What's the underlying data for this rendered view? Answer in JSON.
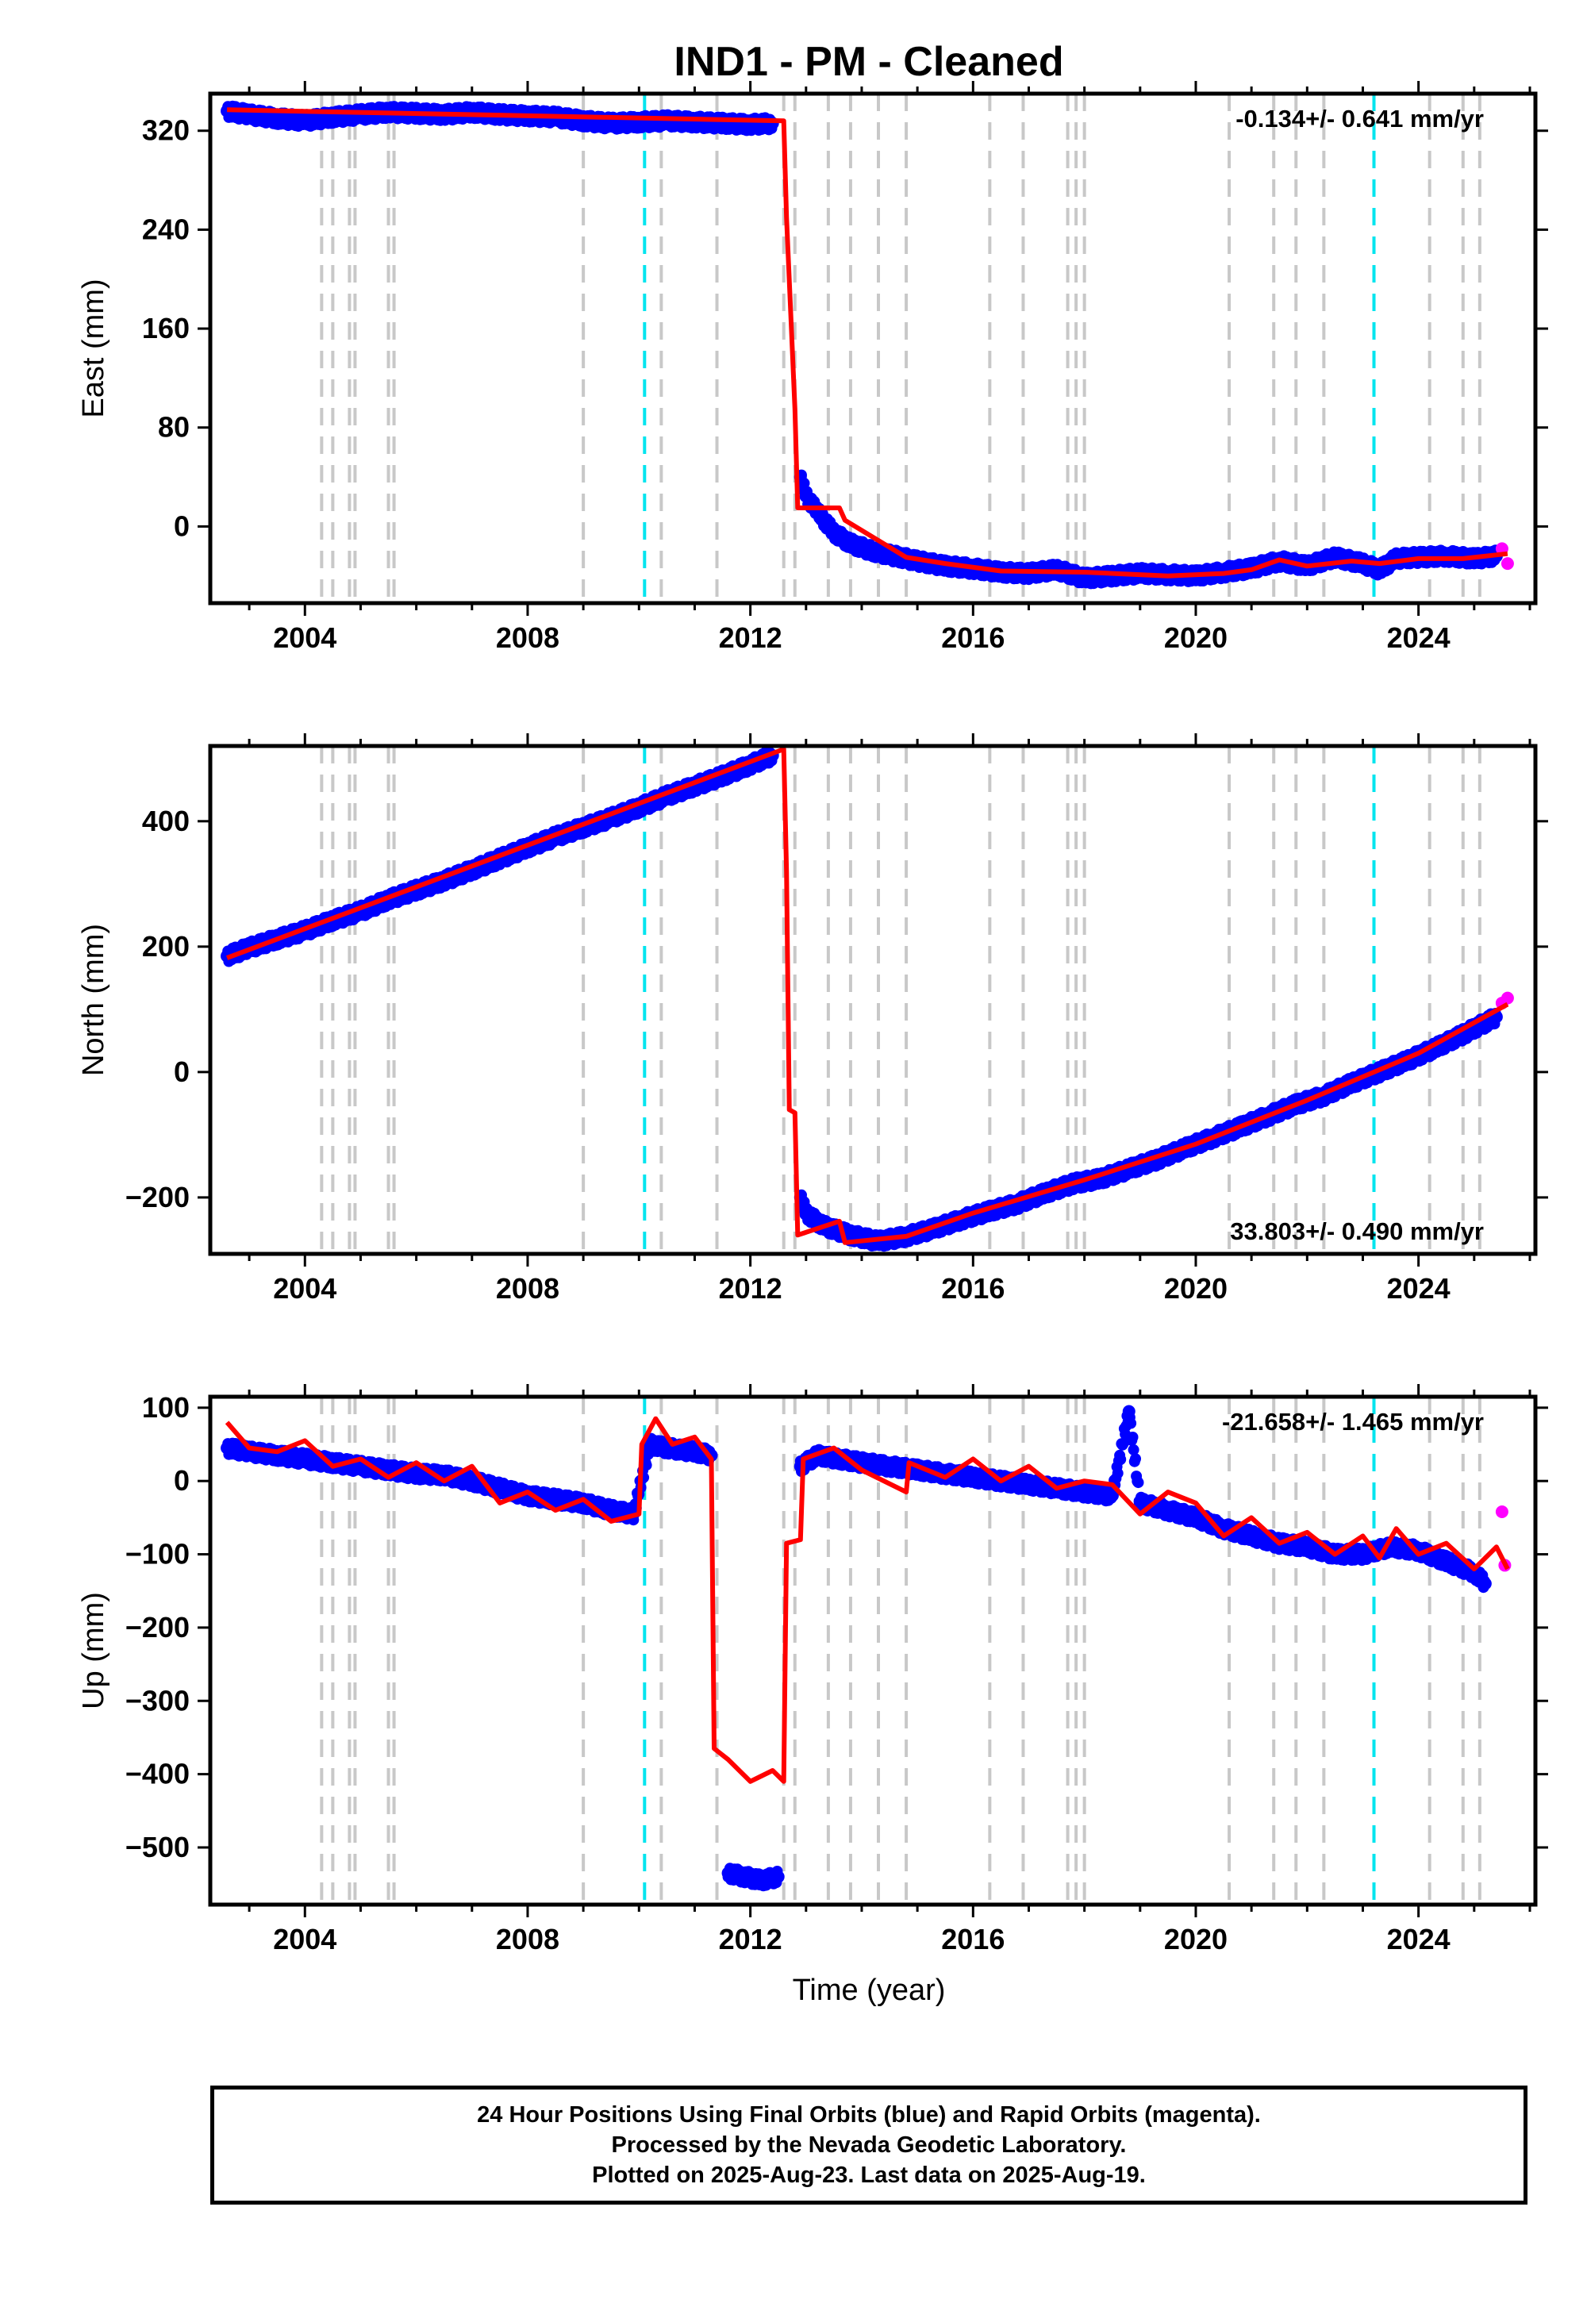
{
  "title": "IND1  - PM - Cleaned",
  "xlabel": "Time (year)",
  "footer": {
    "line1": "24 Hour Positions Using Final Orbits (blue) and Rapid Orbits (magenta).",
    "line2": "Processed by the Nevada Geodetic Laboratory.",
    "line3": "Plotted on 2025-Aug-23. Last data on 2025-Aug-19."
  },
  "colors": {
    "final_orbits": "#0000ff",
    "rapid_orbits": "#ff00ff",
    "model": "#ff0000",
    "equipment_change": "#c8c8c8",
    "earthquake": "#00e5ee"
  },
  "chart_data": {
    "type": "scatter",
    "xlim": [
      2002.3,
      2026.1
    ],
    "x_ticks": [
      2004,
      2008,
      2012,
      2016,
      2020,
      2024
    ],
    "gray_event_lines": [
      2004.3,
      2004.5,
      2004.8,
      2004.9,
      2005.5,
      2005.6,
      2009.0,
      2010.4,
      2011.4,
      2012.6,
      2012.8,
      2013.4,
      2013.8,
      2014.3,
      2014.8,
      2016.3,
      2016.9,
      2017.7,
      2017.85,
      2018.0,
      2020.6,
      2021.4,
      2021.8,
      2022.3,
      2024.2,
      2024.8,
      2025.1
    ],
    "cyan_event_lines": [
      2010.1,
      2023.2
    ],
    "panels": [
      {
        "ylabel": "East (mm)",
        "ylim": [
          -62,
          350
        ],
        "y_ticks": [
          320,
          240,
          160,
          80,
          0
        ],
        "rate_text": "-0.134+/- 0.641 mm/yr",
        "final_points": [
          [
            2002.6,
            336
          ],
          [
            2003.0,
            333
          ],
          [
            2003.5,
            330
          ],
          [
            2004.0,
            328
          ],
          [
            2004.5,
            331
          ],
          [
            2005.0,
            333
          ],
          [
            2005.5,
            335
          ],
          [
            2006.0,
            334
          ],
          [
            2006.5,
            333
          ],
          [
            2007.0,
            335
          ],
          [
            2007.5,
            333
          ],
          [
            2008.0,
            332
          ],
          [
            2008.5,
            331
          ],
          [
            2009.0,
            328
          ],
          [
            2009.5,
            326
          ],
          [
            2010.0,
            327
          ],
          [
            2010.5,
            328
          ],
          [
            2011.0,
            327
          ],
          [
            2011.5,
            326
          ],
          [
            2012.0,
            325
          ],
          [
            2012.4,
            326
          ],
          [
            2012.9,
            40
          ],
          [
            2013.0,
            25
          ],
          [
            2013.2,
            12
          ],
          [
            2013.5,
            -5
          ],
          [
            2013.8,
            -14
          ],
          [
            2014.2,
            -20
          ],
          [
            2014.6,
            -24
          ],
          [
            2015.0,
            -28
          ],
          [
            2015.5,
            -32
          ],
          [
            2016.0,
            -34
          ],
          [
            2016.5,
            -37
          ],
          [
            2017.0,
            -38
          ],
          [
            2017.5,
            -35
          ],
          [
            2018.0,
            -42
          ],
          [
            2018.5,
            -40
          ],
          [
            2019.0,
            -38
          ],
          [
            2019.5,
            -39
          ],
          [
            2020.0,
            -40
          ],
          [
            2020.5,
            -37
          ],
          [
            2021.0,
            -34
          ],
          [
            2021.5,
            -28
          ],
          [
            2022.0,
            -32
          ],
          [
            2022.5,
            -25
          ],
          [
            2023.0,
            -30
          ],
          [
            2023.3,
            -35
          ],
          [
            2023.6,
            -26
          ],
          [
            2024.0,
            -25
          ],
          [
            2024.5,
            -24
          ],
          [
            2025.0,
            -26
          ],
          [
            2025.4,
            -24
          ]
        ],
        "rapid_points": [
          [
            2025.5,
            -18
          ],
          [
            2025.6,
            -30
          ]
        ],
        "model_line": [
          [
            2002.6,
            337
          ],
          [
            2012.6,
            328
          ],
          [
            2012.65,
            250
          ],
          [
            2012.8,
            95
          ],
          [
            2012.85,
            15
          ],
          [
            2013.6,
            15
          ],
          [
            2013.7,
            5
          ],
          [
            2014.8,
            -25
          ],
          [
            2015.5,
            -30
          ],
          [
            2016.5,
            -36
          ],
          [
            2018.0,
            -37
          ],
          [
            2019.5,
            -40
          ],
          [
            2020.5,
            -38
          ],
          [
            2021.0,
            -35
          ],
          [
            2021.5,
            -27
          ],
          [
            2022.0,
            -32
          ],
          [
            2022.8,
            -28
          ],
          [
            2023.3,
            -30
          ],
          [
            2024.0,
            -26
          ],
          [
            2024.8,
            -26
          ],
          [
            2025.6,
            -22
          ]
        ]
      },
      {
        "ylabel": "North (mm)",
        "ylim": [
          -290,
          520
        ],
        "y_ticks": [
          400,
          200,
          0,
          -200
        ],
        "rate_text": "33.803+/- 0.490 mm/yr",
        "final_points": [
          [
            2002.6,
            185
          ],
          [
            2003.0,
            198
          ],
          [
            2003.5,
            212
          ],
          [
            2004.0,
            225
          ],
          [
            2004.5,
            242
          ],
          [
            2005.0,
            256
          ],
          [
            2005.5,
            275
          ],
          [
            2006.0,
            290
          ],
          [
            2006.5,
            305
          ],
          [
            2007.0,
            322
          ],
          [
            2007.5,
            340
          ],
          [
            2008.0,
            358
          ],
          [
            2008.5,
            375
          ],
          [
            2009.0,
            390
          ],
          [
            2009.5,
            405
          ],
          [
            2010.0,
            422
          ],
          [
            2010.5,
            440
          ],
          [
            2011.0,
            456
          ],
          [
            2011.5,
            472
          ],
          [
            2012.0,
            490
          ],
          [
            2012.4,
            505
          ],
          [
            2012.9,
            -200
          ],
          [
            2013.0,
            -225
          ],
          [
            2013.3,
            -245
          ],
          [
            2013.8,
            -260
          ],
          [
            2014.3,
            -270
          ],
          [
            2014.8,
            -262
          ],
          [
            2015.3,
            -250
          ],
          [
            2015.8,
            -235
          ],
          [
            2016.3,
            -222
          ],
          [
            2016.8,
            -210
          ],
          [
            2017.3,
            -193
          ],
          [
            2017.8,
            -178
          ],
          [
            2018.3,
            -170
          ],
          [
            2018.8,
            -155
          ],
          [
            2019.3,
            -140
          ],
          [
            2019.8,
            -122
          ],
          [
            2020.3,
            -105
          ],
          [
            2020.8,
            -88
          ],
          [
            2021.3,
            -70
          ],
          [
            2021.8,
            -52
          ],
          [
            2022.3,
            -38
          ],
          [
            2022.8,
            -18
          ],
          [
            2023.3,
            0
          ],
          [
            2023.8,
            18
          ],
          [
            2024.3,
            38
          ],
          [
            2024.8,
            60
          ],
          [
            2025.4,
            88
          ]
        ],
        "rapid_points": [
          [
            2025.5,
            110
          ],
          [
            2025.6,
            118
          ]
        ],
        "model_line": [
          [
            2002.6,
            182
          ],
          [
            2012.6,
            515
          ],
          [
            2012.65,
            320
          ],
          [
            2012.7,
            -60
          ],
          [
            2012.8,
            -65
          ],
          [
            2012.85,
            -260
          ],
          [
            2013.6,
            -238
          ],
          [
            2013.7,
            -272
          ],
          [
            2014.8,
            -262
          ],
          [
            2016.0,
            -225
          ],
          [
            2018.0,
            -172
          ],
          [
            2020.0,
            -115
          ],
          [
            2022.0,
            -45
          ],
          [
            2024.0,
            30
          ],
          [
            2025.6,
            108
          ]
        ]
      },
      {
        "ylabel": "Up (mm)",
        "ylim": [
          -578,
          115
        ],
        "y_ticks": [
          100,
          0,
          -100,
          -200,
          -300,
          -400,
          -500
        ],
        "rate_text": "-21.658+/- 1.465 mm/yr",
        "final_points": [
          [
            2002.6,
            45
          ],
          [
            2003.0,
            40
          ],
          [
            2003.5,
            35
          ],
          [
            2004.0,
            30
          ],
          [
            2004.5,
            25
          ],
          [
            2005.0,
            20
          ],
          [
            2005.5,
            15
          ],
          [
            2006.0,
            10
          ],
          [
            2006.5,
            8
          ],
          [
            2007.0,
            0
          ],
          [
            2007.5,
            -10
          ],
          [
            2008.0,
            -20
          ],
          [
            2008.5,
            -25
          ],
          [
            2009.0,
            -30
          ],
          [
            2009.5,
            -40
          ],
          [
            2009.9,
            -45
          ],
          [
            2010.2,
            50
          ],
          [
            2010.5,
            45
          ],
          [
            2011.0,
            40
          ],
          [
            2011.3,
            35
          ],
          [
            2011.6,
            -535
          ],
          [
            2011.9,
            -540
          ],
          [
            2012.2,
            -545
          ],
          [
            2012.5,
            -540
          ],
          [
            2012.9,
            20
          ],
          [
            2013.2,
            35
          ],
          [
            2013.6,
            30
          ],
          [
            2014.0,
            25
          ],
          [
            2014.5,
            20
          ],
          [
            2015.0,
            15
          ],
          [
            2015.5,
            10
          ],
          [
            2016.0,
            5
          ],
          [
            2016.5,
            0
          ],
          [
            2017.0,
            -5
          ],
          [
            2017.5,
            -10
          ],
          [
            2018.0,
            -15
          ],
          [
            2018.5,
            -20
          ],
          [
            2018.8,
            95
          ],
          [
            2019.0,
            -30
          ],
          [
            2019.5,
            -40
          ],
          [
            2020.0,
            -50
          ],
          [
            2020.5,
            -65
          ],
          [
            2021.0,
            -75
          ],
          [
            2021.5,
            -85
          ],
          [
            2022.0,
            -90
          ],
          [
            2022.5,
            -100
          ],
          [
            2023.0,
            -100
          ],
          [
            2023.5,
            -90
          ],
          [
            2024.0,
            -95
          ],
          [
            2024.5,
            -110
          ],
          [
            2025.0,
            -125
          ],
          [
            2025.2,
            -140
          ]
        ],
        "rapid_points": [
          [
            2025.5,
            -42
          ],
          [
            2025.55,
            -115
          ]
        ],
        "model_line": [
          [
            2002.6,
            80
          ],
          [
            2003.0,
            45
          ],
          [
            2003.5,
            40
          ],
          [
            2004.0,
            55
          ],
          [
            2004.5,
            20
          ],
          [
            2005.0,
            30
          ],
          [
            2005.5,
            5
          ],
          [
            2006.0,
            25
          ],
          [
            2006.5,
            0
          ],
          [
            2007.0,
            20
          ],
          [
            2007.5,
            -30
          ],
          [
            2008.0,
            -15
          ],
          [
            2008.5,
            -40
          ],
          [
            2009.0,
            -25
          ],
          [
            2009.5,
            -55
          ],
          [
            2010.0,
            -45
          ],
          [
            2010.05,
            50
          ],
          [
            2010.3,
            85
          ],
          [
            2010.6,
            50
          ],
          [
            2011.0,
            60
          ],
          [
            2011.3,
            30
          ],
          [
            2011.35,
            -365
          ],
          [
            2011.6,
            -380
          ],
          [
            2012.0,
            -410
          ],
          [
            2012.4,
            -395
          ],
          [
            2012.6,
            -410
          ],
          [
            2012.65,
            -85
          ],
          [
            2012.9,
            -80
          ],
          [
            2012.95,
            30
          ],
          [
            2013.5,
            45
          ],
          [
            2014.0,
            15
          ],
          [
            2014.8,
            -15
          ],
          [
            2014.85,
            25
          ],
          [
            2015.5,
            5
          ],
          [
            2016.0,
            30
          ],
          [
            2016.5,
            0
          ],
          [
            2017.0,
            20
          ],
          [
            2017.5,
            -10
          ],
          [
            2018.0,
            0
          ],
          [
            2018.5,
            -5
          ],
          [
            2019.0,
            -45
          ],
          [
            2019.5,
            -15
          ],
          [
            2020.0,
            -30
          ],
          [
            2020.5,
            -75
          ],
          [
            2021.0,
            -50
          ],
          [
            2021.5,
            -85
          ],
          [
            2022.0,
            -70
          ],
          [
            2022.5,
            -100
          ],
          [
            2023.0,
            -75
          ],
          [
            2023.3,
            -105
          ],
          [
            2023.6,
            -65
          ],
          [
            2024.0,
            -100
          ],
          [
            2024.5,
            -85
          ],
          [
            2025.0,
            -120
          ],
          [
            2025.4,
            -90
          ],
          [
            2025.6,
            -120
          ]
        ]
      }
    ]
  }
}
